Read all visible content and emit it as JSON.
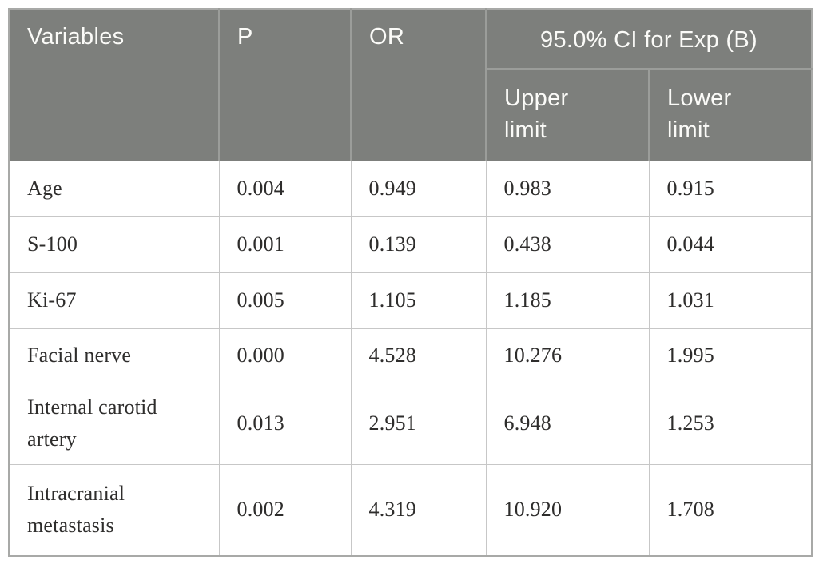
{
  "colors": {
    "header_bg": "#7d7f7c",
    "header_text": "#fbfbf8",
    "header_divider": "#9b9d9a",
    "body_border": "#c7c7c7",
    "outer_border": "#a8a9a7",
    "body_text": "#2e2d2c"
  },
  "header": {
    "variables": "Variables",
    "p": "P",
    "or": "OR",
    "ci_group": "95.0% CI for Exp (B)",
    "upper": "Upper\nlimit",
    "lower": "Lower\nlimit"
  },
  "rows": [
    {
      "variable": "Age",
      "p": "0.004",
      "or": "0.949",
      "upper": "0.983",
      "lower": "0.915"
    },
    {
      "variable": "S-100",
      "p": "0.001",
      "or": "0.139",
      "upper": "0.438",
      "lower": "0.044"
    },
    {
      "variable": "Ki-67",
      "p": "0.005",
      "or": "1.105",
      "upper": "1.185",
      "lower": "1.031"
    },
    {
      "variable": "Facial nerve",
      "p": "0.000",
      "or": "4.528",
      "upper": "10.276",
      "lower": "1.995"
    },
    {
      "variable": "Internal carotid artery",
      "p": "0.013",
      "or": "2.951",
      "upper": "6.948",
      "lower": "1.253"
    },
    {
      "variable": "Intracranial metastasis",
      "p": "0.002",
      "or": "4.319",
      "upper": "10.920",
      "lower": "1.708"
    }
  ],
  "chart_data": {
    "type": "table",
    "title": "95.0% CI for Exp (B)",
    "columns": [
      "Variables",
      "P",
      "OR",
      "Upper limit",
      "Lower limit"
    ],
    "rows": [
      [
        "Age",
        0.004,
        0.949,
        0.983,
        0.915
      ],
      [
        "S-100",
        0.001,
        0.139,
        0.438,
        0.044
      ],
      [
        "Ki-67",
        0.005,
        1.105,
        1.185,
        1.031
      ],
      [
        "Facial nerve",
        0.0,
        4.528,
        10.276,
        1.995
      ],
      [
        "Internal carotid artery",
        0.013,
        2.951,
        6.948,
        1.253
      ],
      [
        "Intracranial metastasis",
        0.002,
        4.319,
        10.92,
        1.708
      ]
    ]
  }
}
